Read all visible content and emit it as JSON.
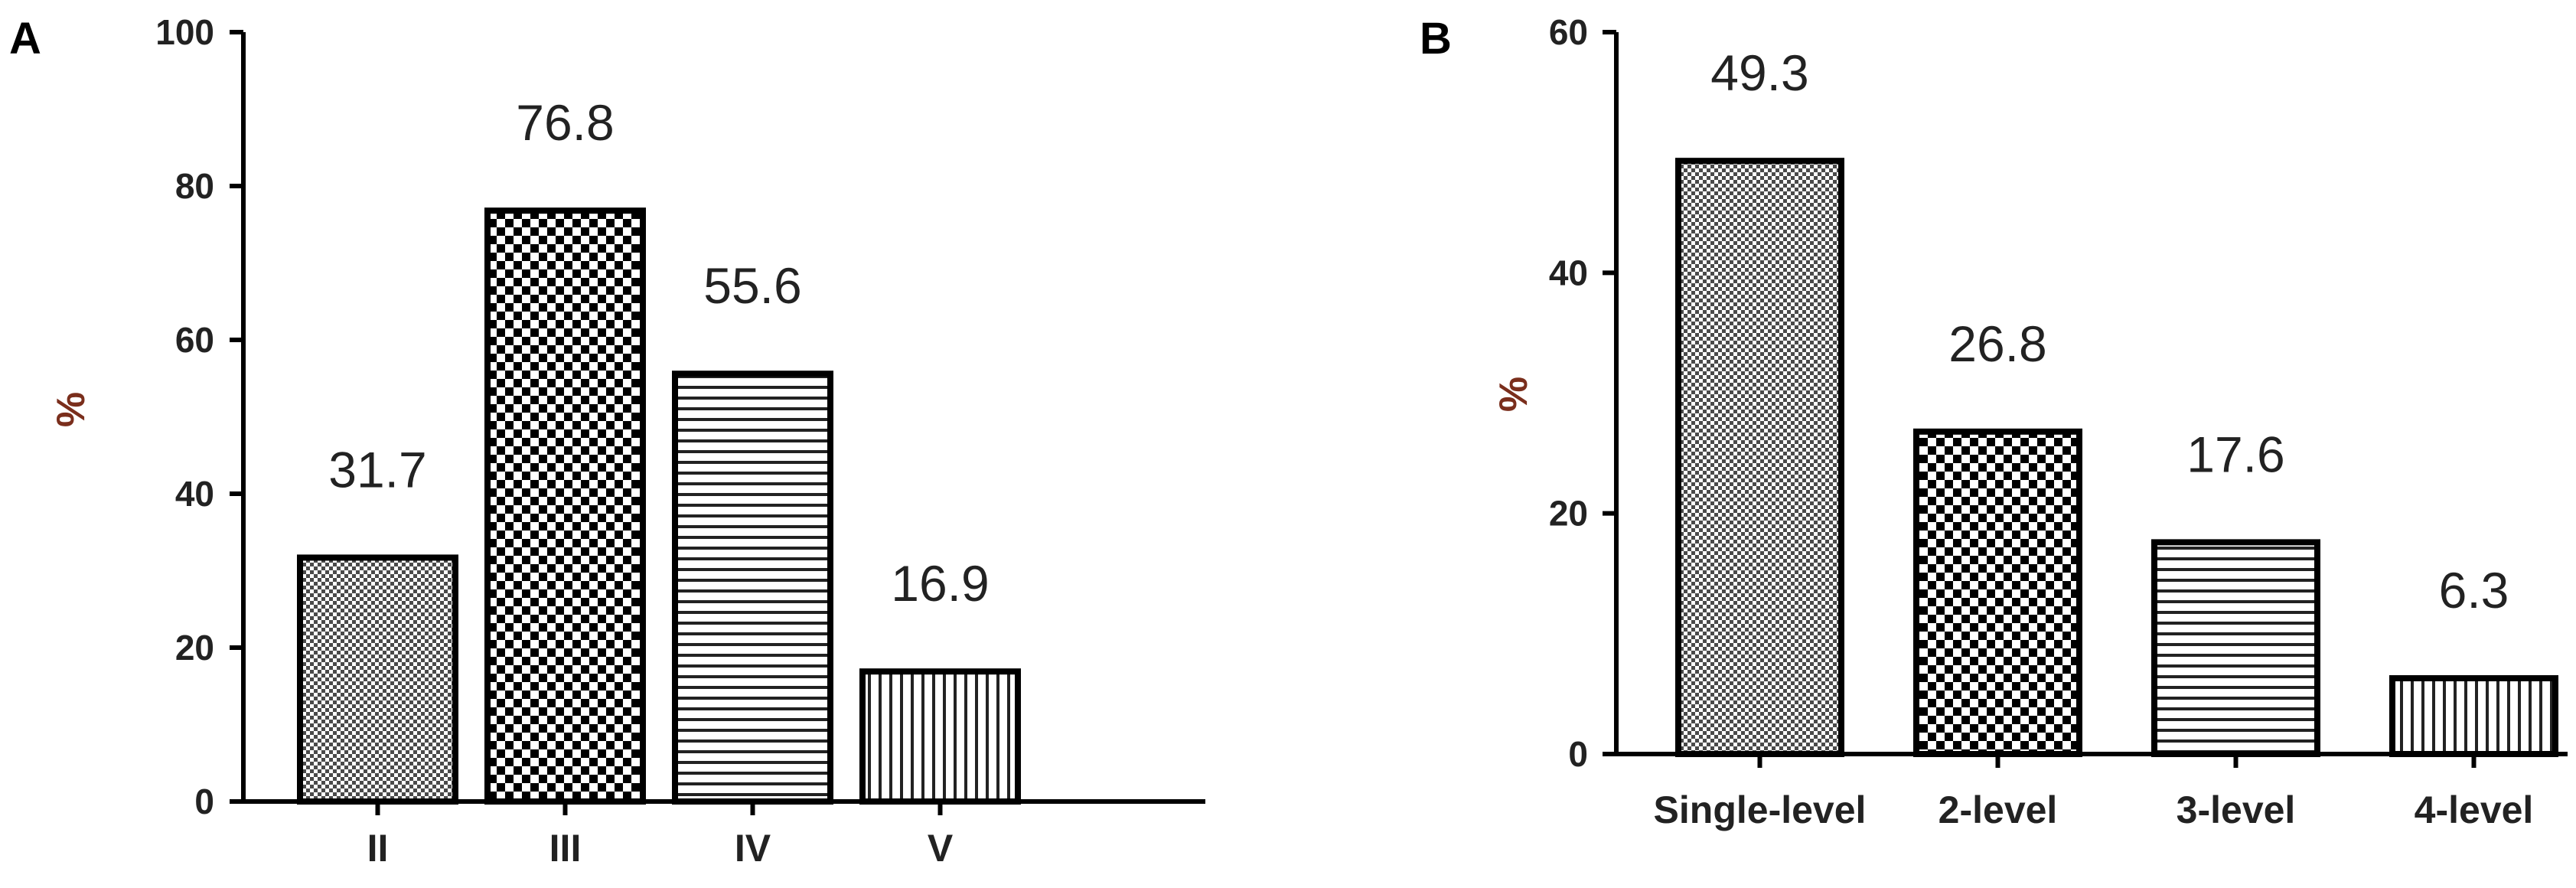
{
  "chart_data": [
    {
      "panel": "A",
      "type": "bar",
      "ylabel": "%",
      "categories": [
        "II",
        "III",
        "IV",
        "V"
      ],
      "values": [
        31.7,
        76.8,
        55.6,
        16.9
      ],
      "data_labels": [
        "31.7",
        "76.8",
        "55.6",
        "16.9"
      ],
      "patterns": [
        "dense-dots",
        "checker",
        "horizontal-lines",
        "vertical-lines"
      ],
      "ylim": [
        0,
        100
      ],
      "yticks": [
        0,
        20,
        40,
        60,
        80,
        100
      ],
      "grid": false,
      "legend": "none"
    },
    {
      "panel": "B",
      "type": "bar",
      "ylabel": "%",
      "categories": [
        "Single-level",
        "2-level",
        "3-level",
        "4-level"
      ],
      "values": [
        49.3,
        26.8,
        17.6,
        6.3
      ],
      "data_labels": [
        "49.3",
        "26.8",
        "17.6",
        "6.3"
      ],
      "patterns": [
        "dense-dots",
        "checker",
        "horizontal-lines",
        "vertical-lines"
      ],
      "ylim": [
        0,
        60
      ],
      "yticks": [
        0,
        20,
        40,
        60
      ],
      "grid": false,
      "legend": "none"
    }
  ]
}
